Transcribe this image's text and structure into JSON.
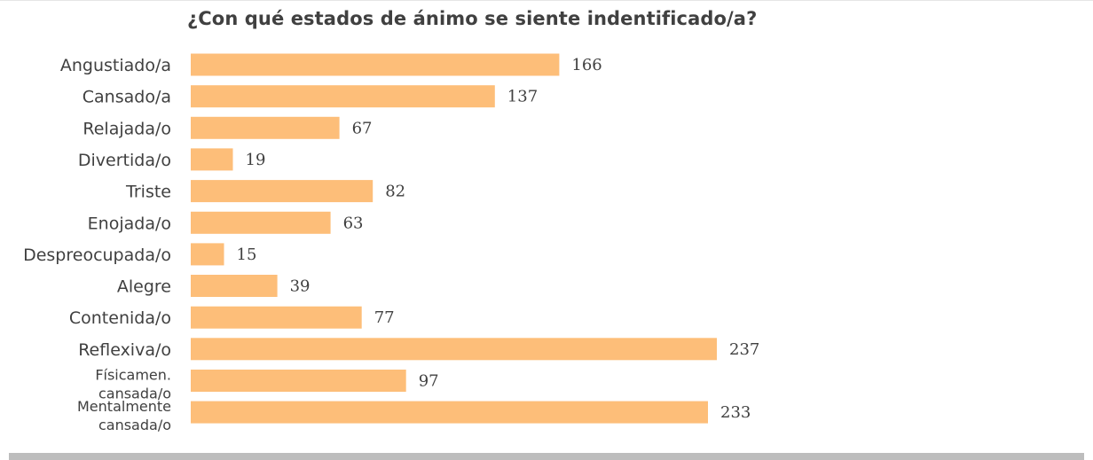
{
  "chart_data": {
    "type": "bar",
    "orientation": "horizontal",
    "title": "¿Con qué estados de ánimo se siente indentificado/a?",
    "categories": [
      "Angustiado/a",
      "Cansado/a",
      "Relajada/o",
      "Divertida/o",
      "Triste",
      "Enojada/o",
      "Despreocupada/o",
      "Alegre",
      "Contenida/o",
      "Reflexiva/o",
      "Físicamen. cansada/o",
      "Mentalmente cansada/o"
    ],
    "values": [
      166,
      137,
      67,
      19,
      82,
      63,
      15,
      39,
      77,
      237,
      97,
      233
    ],
    "xlim": [
      0,
      237
    ],
    "grid": false,
    "legend": "none",
    "bar_color": "#fdbe79"
  }
}
